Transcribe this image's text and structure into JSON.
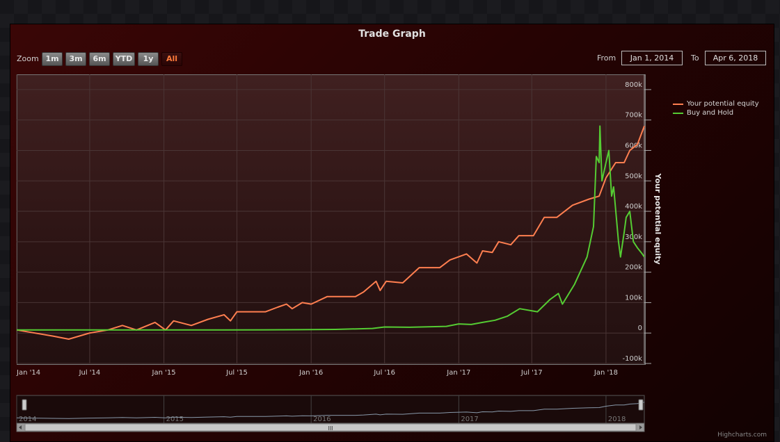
{
  "chart_data": {
    "type": "line",
    "title": "Trade Graph",
    "ylabel": "Your potential equity",
    "ylim": [
      -100000,
      850000
    ],
    "yticks": [
      "-100k",
      "0",
      "100k",
      "200k",
      "300k",
      "400k",
      "500k",
      "600k",
      "700k",
      "800k"
    ],
    "xticks": [
      "Jan '14",
      "Jul '14",
      "Jan '15",
      "Jul '15",
      "Jan '16",
      "Jul '16",
      "Jan '17",
      "Jul '17",
      "Jan '18"
    ],
    "xlim": [
      "2014-01-01",
      "2018-04-06"
    ],
    "legend_position": "top-right",
    "series": [
      {
        "name": "Your potential equity",
        "color": "#ff7f50",
        "points": [
          [
            "2014-01-01",
            10000
          ],
          [
            "2014-02-15",
            0
          ],
          [
            "2014-04-01",
            -10000
          ],
          [
            "2014-05-10",
            -20000
          ],
          [
            "2014-07-01",
            0
          ],
          [
            "2014-08-15",
            10000
          ],
          [
            "2014-09-20",
            25000
          ],
          [
            "2014-10-25",
            10000
          ],
          [
            "2014-12-10",
            35000
          ],
          [
            "2015-01-05",
            10000
          ],
          [
            "2015-01-25",
            40000
          ],
          [
            "2015-03-10",
            25000
          ],
          [
            "2015-04-20",
            45000
          ],
          [
            "2015-05-30",
            60000
          ],
          [
            "2015-06-15",
            40000
          ],
          [
            "2015-07-01",
            70000
          ],
          [
            "2015-09-10",
            70000
          ],
          [
            "2015-10-10",
            85000
          ],
          [
            "2015-11-01",
            95000
          ],
          [
            "2015-11-15",
            80000
          ],
          [
            "2015-12-10",
            100000
          ],
          [
            "2016-01-01",
            95000
          ],
          [
            "2016-02-10",
            120000
          ],
          [
            "2016-04-20",
            120000
          ],
          [
            "2016-05-10",
            135000
          ],
          [
            "2016-06-10",
            170000
          ],
          [
            "2016-06-20",
            140000
          ],
          [
            "2016-07-05",
            170000
          ],
          [
            "2016-08-15",
            165000
          ],
          [
            "2016-09-25",
            215000
          ],
          [
            "2016-11-15",
            215000
          ],
          [
            "2016-12-10",
            240000
          ],
          [
            "2017-01-20",
            260000
          ],
          [
            "2017-02-15",
            230000
          ],
          [
            "2017-03-01",
            270000
          ],
          [
            "2017-03-25",
            265000
          ],
          [
            "2017-04-10",
            300000
          ],
          [
            "2017-05-10",
            290000
          ],
          [
            "2017-05-30",
            320000
          ],
          [
            "2017-07-05",
            320000
          ],
          [
            "2017-08-01",
            380000
          ],
          [
            "2017-09-01",
            380000
          ],
          [
            "2017-10-10",
            420000
          ],
          [
            "2017-11-20",
            440000
          ],
          [
            "2017-12-15",
            450000
          ],
          [
            "2018-01-01",
            510000
          ],
          [
            "2018-01-25",
            560000
          ],
          [
            "2018-02-15",
            560000
          ],
          [
            "2018-03-01",
            600000
          ],
          [
            "2018-03-20",
            620000
          ],
          [
            "2018-04-06",
            680000
          ]
        ]
      },
      {
        "name": "Buy and Hold",
        "color": "#55cc33",
        "points": [
          [
            "2014-01-01",
            10000
          ],
          [
            "2014-06-01",
            10000
          ],
          [
            "2014-12-01",
            10000
          ],
          [
            "2015-06-01",
            10000
          ],
          [
            "2015-12-01",
            11000
          ],
          [
            "2016-03-01",
            12000
          ],
          [
            "2016-06-01",
            15000
          ],
          [
            "2016-07-01",
            20000
          ],
          [
            "2016-09-01",
            19000
          ],
          [
            "2016-12-01",
            22000
          ],
          [
            "2017-01-01",
            30000
          ],
          [
            "2017-02-01",
            28000
          ],
          [
            "2017-03-01",
            35000
          ],
          [
            "2017-04-01",
            42000
          ],
          [
            "2017-05-01",
            55000
          ],
          [
            "2017-06-01",
            80000
          ],
          [
            "2017-07-15",
            70000
          ],
          [
            "2017-08-15",
            110000
          ],
          [
            "2017-09-05",
            130000
          ],
          [
            "2017-09-15",
            95000
          ],
          [
            "2017-10-15",
            160000
          ],
          [
            "2017-11-15",
            250000
          ],
          [
            "2017-12-01",
            350000
          ],
          [
            "2017-12-08",
            580000
          ],
          [
            "2017-12-15",
            560000
          ],
          [
            "2017-12-17",
            680000
          ],
          [
            "2017-12-22",
            500000
          ],
          [
            "2018-01-01",
            560000
          ],
          [
            "2018-01-08",
            600000
          ],
          [
            "2018-01-15",
            450000
          ],
          [
            "2018-01-20",
            480000
          ],
          [
            "2018-02-01",
            300000
          ],
          [
            "2018-02-06",
            250000
          ],
          [
            "2018-02-15",
            330000
          ],
          [
            "2018-02-20",
            380000
          ],
          [
            "2018-03-01",
            400000
          ],
          [
            "2018-03-10",
            300000
          ],
          [
            "2018-03-20",
            280000
          ],
          [
            "2018-04-01",
            260000
          ],
          [
            "2018-04-06",
            250000
          ]
        ]
      }
    ],
    "navigator": {
      "labels": [
        "2014",
        "2015",
        "2016",
        "2017",
        "2018"
      ]
    }
  },
  "zoom": {
    "label": "Zoom",
    "buttons": [
      "1m",
      "3m",
      "6m",
      "YTD",
      "1y",
      "All"
    ],
    "active": "All"
  },
  "range": {
    "from_label": "From",
    "from_value": "Jan 1, 2014",
    "to_label": "To",
    "to_value": "Apr 6, 2018"
  },
  "scrollbar": {
    "grip": "III"
  },
  "credits": "Highcharts.com"
}
